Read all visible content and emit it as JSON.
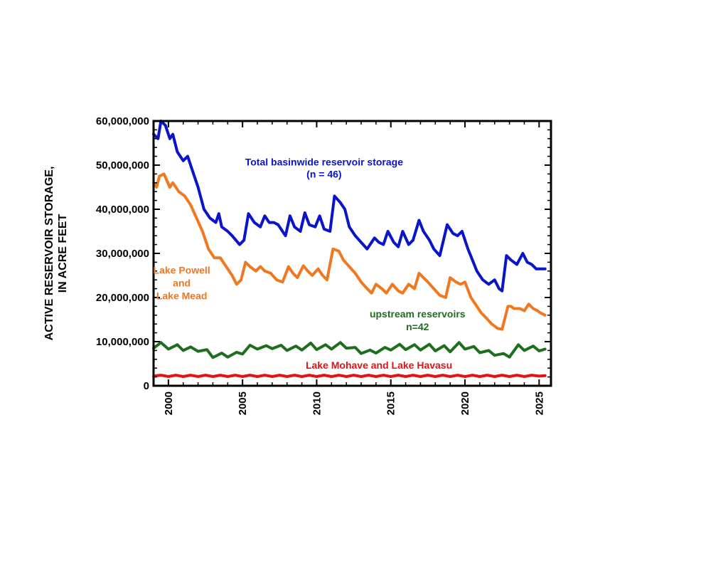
{
  "chart_data": {
    "type": "line",
    "ylabel_line1": "ACTIVE RESERVOIR STORAGE,",
    "ylabel_line2": "IN ACRE FEET",
    "xlabel": "",
    "xlim": [
      1999.0,
      2025.8
    ],
    "ylim": [
      0,
      60000000
    ],
    "x_ticks": [
      2000,
      2005,
      2010,
      2015,
      2020,
      2025
    ],
    "x_tick_labels": [
      "2000",
      "2005",
      "2010",
      "2015",
      "2020",
      "2025"
    ],
    "y_ticks": [
      0,
      10000000,
      20000000,
      30000000,
      40000000,
      50000000,
      60000000
    ],
    "y_tick_labels": [
      "0",
      "10,000,000",
      "20,000,000",
      "30,000,000",
      "40,000,000",
      "50,000,000",
      "60,000,000"
    ],
    "grid": false,
    "series": [
      {
        "key": "total",
        "color": "#0a14c8",
        "x": [
          1999.0,
          1999.3,
          1999.5,
          1999.8,
          2000.1,
          2000.3,
          2000.6,
          2001.0,
          2001.3,
          2001.6,
          2002.0,
          2002.4,
          2002.8,
          2003.2,
          2003.4,
          2003.6,
          2004.0,
          2004.3,
          2004.8,
          2005.1,
          2005.4,
          2005.8,
          2006.2,
          2006.5,
          2006.8,
          2007.1,
          2007.4,
          2007.9,
          2008.2,
          2008.5,
          2008.9,
          2009.2,
          2009.5,
          2009.9,
          2010.2,
          2010.5,
          2010.9,
          2011.2,
          2011.6,
          2011.9,
          2012.2,
          2012.6,
          2013.0,
          2013.4,
          2013.9,
          2014.2,
          2014.5,
          2014.8,
          2015.2,
          2015.5,
          2015.8,
          2016.2,
          2016.5,
          2016.9,
          2017.2,
          2017.6,
          2017.9,
          2018.3,
          2018.8,
          2019.2,
          2019.5,
          2019.8,
          2020.2,
          2020.5,
          2020.8,
          2021.2,
          2021.6,
          2022.0,
          2022.3,
          2022.5,
          2022.8,
          2023.1,
          2023.3,
          2023.5,
          2023.9,
          2024.2,
          2024.5,
          2024.8,
          2025.1,
          2025.4
        ],
        "y": [
          57000000,
          56000000,
          60000000,
          59000000,
          56000000,
          57000000,
          53000000,
          51000000,
          52000000,
          49000000,
          45000000,
          40000000,
          38000000,
          37000000,
          39000000,
          36000000,
          35000000,
          34000000,
          32000000,
          33000000,
          39000000,
          37000000,
          36000000,
          38500000,
          37000000,
          37000000,
          36500000,
          34000000,
          38500000,
          36000000,
          35000000,
          39200000,
          36500000,
          36000000,
          38500000,
          35500000,
          35000000,
          43000000,
          41500000,
          40000000,
          36000000,
          34000000,
          32500000,
          31000000,
          33500000,
          32500000,
          32000000,
          35000000,
          32500000,
          31500000,
          35000000,
          32000000,
          33000000,
          37500000,
          35000000,
          33000000,
          31000000,
          29500000,
          36500000,
          34500000,
          34000000,
          35000000,
          31000000,
          28500000,
          26000000,
          24000000,
          23000000,
          24000000,
          22000000,
          21500000,
          29500000,
          28500000,
          28000000,
          27500000,
          30000000,
          28000000,
          27500000,
          26500000,
          26500000,
          26500000
        ]
      },
      {
        "key": "powell_mead",
        "color": "#f07820",
        "x": [
          1999.0,
          1999.2,
          1999.4,
          1999.7,
          2000.1,
          2000.3,
          2000.7,
          2001.1,
          2001.5,
          2001.9,
          2002.3,
          2002.7,
          2003.1,
          2003.5,
          2003.9,
          2004.3,
          2004.6,
          2004.9,
          2005.2,
          2005.5,
          2005.9,
          2006.2,
          2006.5,
          2006.9,
          2007.3,
          2007.7,
          2008.1,
          2008.4,
          2008.7,
          2009.1,
          2009.4,
          2009.7,
          2010.1,
          2010.4,
          2010.7,
          2011.1,
          2011.5,
          2011.8,
          2012.2,
          2012.6,
          2013.0,
          2013.4,
          2013.7,
          2014.0,
          2014.4,
          2014.7,
          2015.1,
          2015.5,
          2015.8,
          2016.2,
          2016.6,
          2016.9,
          2017.2,
          2017.5,
          2017.9,
          2018.3,
          2018.7,
          2019.0,
          2019.4,
          2019.7,
          2020.0,
          2020.4,
          2020.8,
          2021.1,
          2021.4,
          2021.8,
          2022.2,
          2022.5,
          2022.9,
          2023.1,
          2023.3,
          2023.7,
          2024.0,
          2024.3,
          2024.6,
          2024.9,
          2025.1,
          2025.4
        ],
        "y": [
          46000000,
          45000000,
          47500000,
          48000000,
          45000000,
          46000000,
          44000000,
          43000000,
          41000000,
          38000000,
          35000000,
          31000000,
          29000000,
          29000000,
          27000000,
          25000000,
          23000000,
          24000000,
          28000000,
          27000000,
          26000000,
          27000000,
          26000000,
          25500000,
          24000000,
          23500000,
          27000000,
          25500000,
          24500000,
          27200000,
          26000000,
          25000000,
          26500000,
          25000000,
          24000000,
          31000000,
          30500000,
          28500000,
          27000000,
          25500000,
          23500000,
          22000000,
          21000000,
          23000000,
          22000000,
          21000000,
          23000000,
          21500000,
          21000000,
          23000000,
          22000000,
          25500000,
          24500000,
          23500000,
          22000000,
          20500000,
          20000000,
          24500000,
          23500000,
          23000000,
          23500000,
          20000000,
          18000000,
          16500000,
          15500000,
          14000000,
          13000000,
          12800000,
          18000000,
          18000000,
          17500000,
          17500000,
          17000000,
          18500000,
          17500000,
          17000000,
          16500000,
          16000000
        ]
      },
      {
        "key": "upstream",
        "color": "#1e6e1e",
        "x": [
          1999.0,
          1999.5,
          2000.0,
          2000.6,
          2001.0,
          2001.5,
          2002.0,
          2002.6,
          2003.0,
          2003.6,
          2004.0,
          2004.6,
          2005.0,
          2005.5,
          2006.0,
          2006.6,
          2007.0,
          2007.6,
          2008.0,
          2008.6,
          2009.0,
          2009.6,
          2010.0,
          2010.6,
          2011.0,
          2011.6,
          2012.0,
          2012.6,
          2013.0,
          2013.6,
          2014.0,
          2014.6,
          2015.0,
          2015.6,
          2016.0,
          2016.6,
          2017.0,
          2017.6,
          2018.0,
          2018.6,
          2019.0,
          2019.6,
          2020.0,
          2020.6,
          2021.0,
          2021.6,
          2022.0,
          2022.6,
          2023.0,
          2023.6,
          2024.0,
          2024.6,
          2025.0,
          2025.4
        ],
        "y": [
          8500000,
          9800000,
          8300000,
          9300000,
          8000000,
          8800000,
          7800000,
          8200000,
          6400000,
          7400000,
          6500000,
          7600000,
          7200000,
          9200000,
          8300000,
          9100000,
          8400000,
          9200000,
          8000000,
          9000000,
          8100000,
          9700000,
          8200000,
          9300000,
          8300000,
          9800000,
          8500000,
          8700000,
          7300000,
          8100000,
          7400000,
          8700000,
          8100000,
          9400000,
          8200000,
          9300000,
          8100000,
          9400000,
          7900000,
          9100000,
          7700000,
          9800000,
          8300000,
          8900000,
          7500000,
          8000000,
          6900000,
          7300000,
          6500000,
          9300000,
          8000000,
          9000000,
          7900000,
          8300000
        ]
      },
      {
        "key": "mohave_havasu",
        "color": "#e01414",
        "x": [
          1999.0,
          1999.5,
          2000.0,
          2000.5,
          2001.0,
          2001.5,
          2002.0,
          2002.5,
          2003.0,
          2003.5,
          2004.0,
          2004.5,
          2005.0,
          2005.5,
          2006.0,
          2006.5,
          2007.0,
          2007.5,
          2008.0,
          2008.5,
          2009.0,
          2009.5,
          2010.0,
          2010.5,
          2011.0,
          2011.5,
          2012.0,
          2012.5,
          2013.0,
          2013.5,
          2014.0,
          2014.5,
          2015.0,
          2015.5,
          2016.0,
          2016.5,
          2017.0,
          2017.5,
          2018.0,
          2018.5,
          2019.0,
          2019.5,
          2020.0,
          2020.5,
          2021.0,
          2021.5,
          2022.0,
          2022.5,
          2023.0,
          2023.5,
          2024.0,
          2024.5,
          2025.0,
          2025.4
        ],
        "y": [
          2200000,
          2400000,
          2100000,
          2400000,
          2100000,
          2400000,
          2100000,
          2400000,
          2100000,
          2400000,
          2100000,
          2400000,
          2100000,
          2400000,
          2100000,
          2400000,
          2100000,
          2400000,
          2100000,
          2400000,
          2100000,
          2400000,
          2100000,
          2400000,
          2100000,
          2400000,
          2100000,
          2400000,
          2100000,
          2400000,
          2100000,
          2400000,
          2100000,
          2400000,
          2100000,
          2400000,
          2100000,
          2400000,
          2100000,
          2400000,
          2100000,
          2400000,
          2100000,
          2400000,
          2100000,
          2400000,
          2100000,
          2400000,
          2100000,
          2400000,
          2100000,
          2400000,
          2200000,
          2300000
        ]
      }
    ],
    "annotations": {
      "total": {
        "lines": [
          "Total basinwide reservoir storage",
          "(n = 46)"
        ],
        "color": "#0a14c8"
      },
      "powell_mead": {
        "lines": [
          "Lake Powell",
          "and",
          "Lake Mead"
        ],
        "color": "#f07820"
      },
      "upstream": {
        "lines": [
          "upstream reservoirs",
          "n=42"
        ],
        "color": "#1e6e1e"
      },
      "mohave_havasu": {
        "lines": [
          "Lake Mohave and Lake Havasu"
        ],
        "color": "#e01414"
      }
    }
  }
}
